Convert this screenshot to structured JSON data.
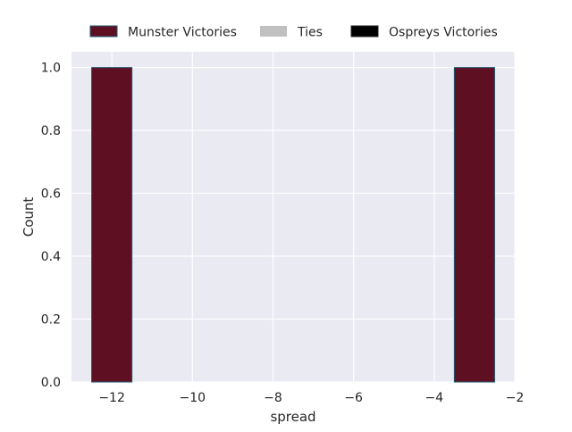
{
  "chart_data": {
    "type": "bar",
    "title": "",
    "xlabel": "spread",
    "ylabel": "Count",
    "xlim": [
      -13.0,
      -2.0
    ],
    "ylim": [
      0,
      1.05
    ],
    "xticks": [
      -12,
      -10,
      -8,
      -6,
      -4,
      -2
    ],
    "xtick_labels": [
      "−12",
      "−10",
      "−8",
      "−6",
      "−4",
      "−2"
    ],
    "yticks": [
      0.0,
      0.2,
      0.4,
      0.6,
      0.8,
      1.0
    ],
    "ytick_labels": [
      "0.0",
      "0.2",
      "0.4",
      "0.6",
      "0.8",
      "1.0"
    ],
    "grid": true,
    "legend_position": "top-center",
    "legend": [
      {
        "name": "Munster Victories",
        "color": "#5e1022"
      },
      {
        "name": "Ties",
        "color": "#c0c0c0"
      },
      {
        "name": "Ospreys Victories",
        "color": "#000000"
      }
    ],
    "series": [
      {
        "name": "Munster Victories",
        "color": "#5e1022",
        "edge_color": "#1f5a6e",
        "bins": [
          {
            "x_start": -12.5,
            "x_end": -11.5,
            "count": 1
          },
          {
            "x_start": -3.5,
            "x_end": -2.5,
            "count": 1
          }
        ]
      }
    ],
    "background_color": "#eaeaf2",
    "grid_color": "#ffffff"
  }
}
